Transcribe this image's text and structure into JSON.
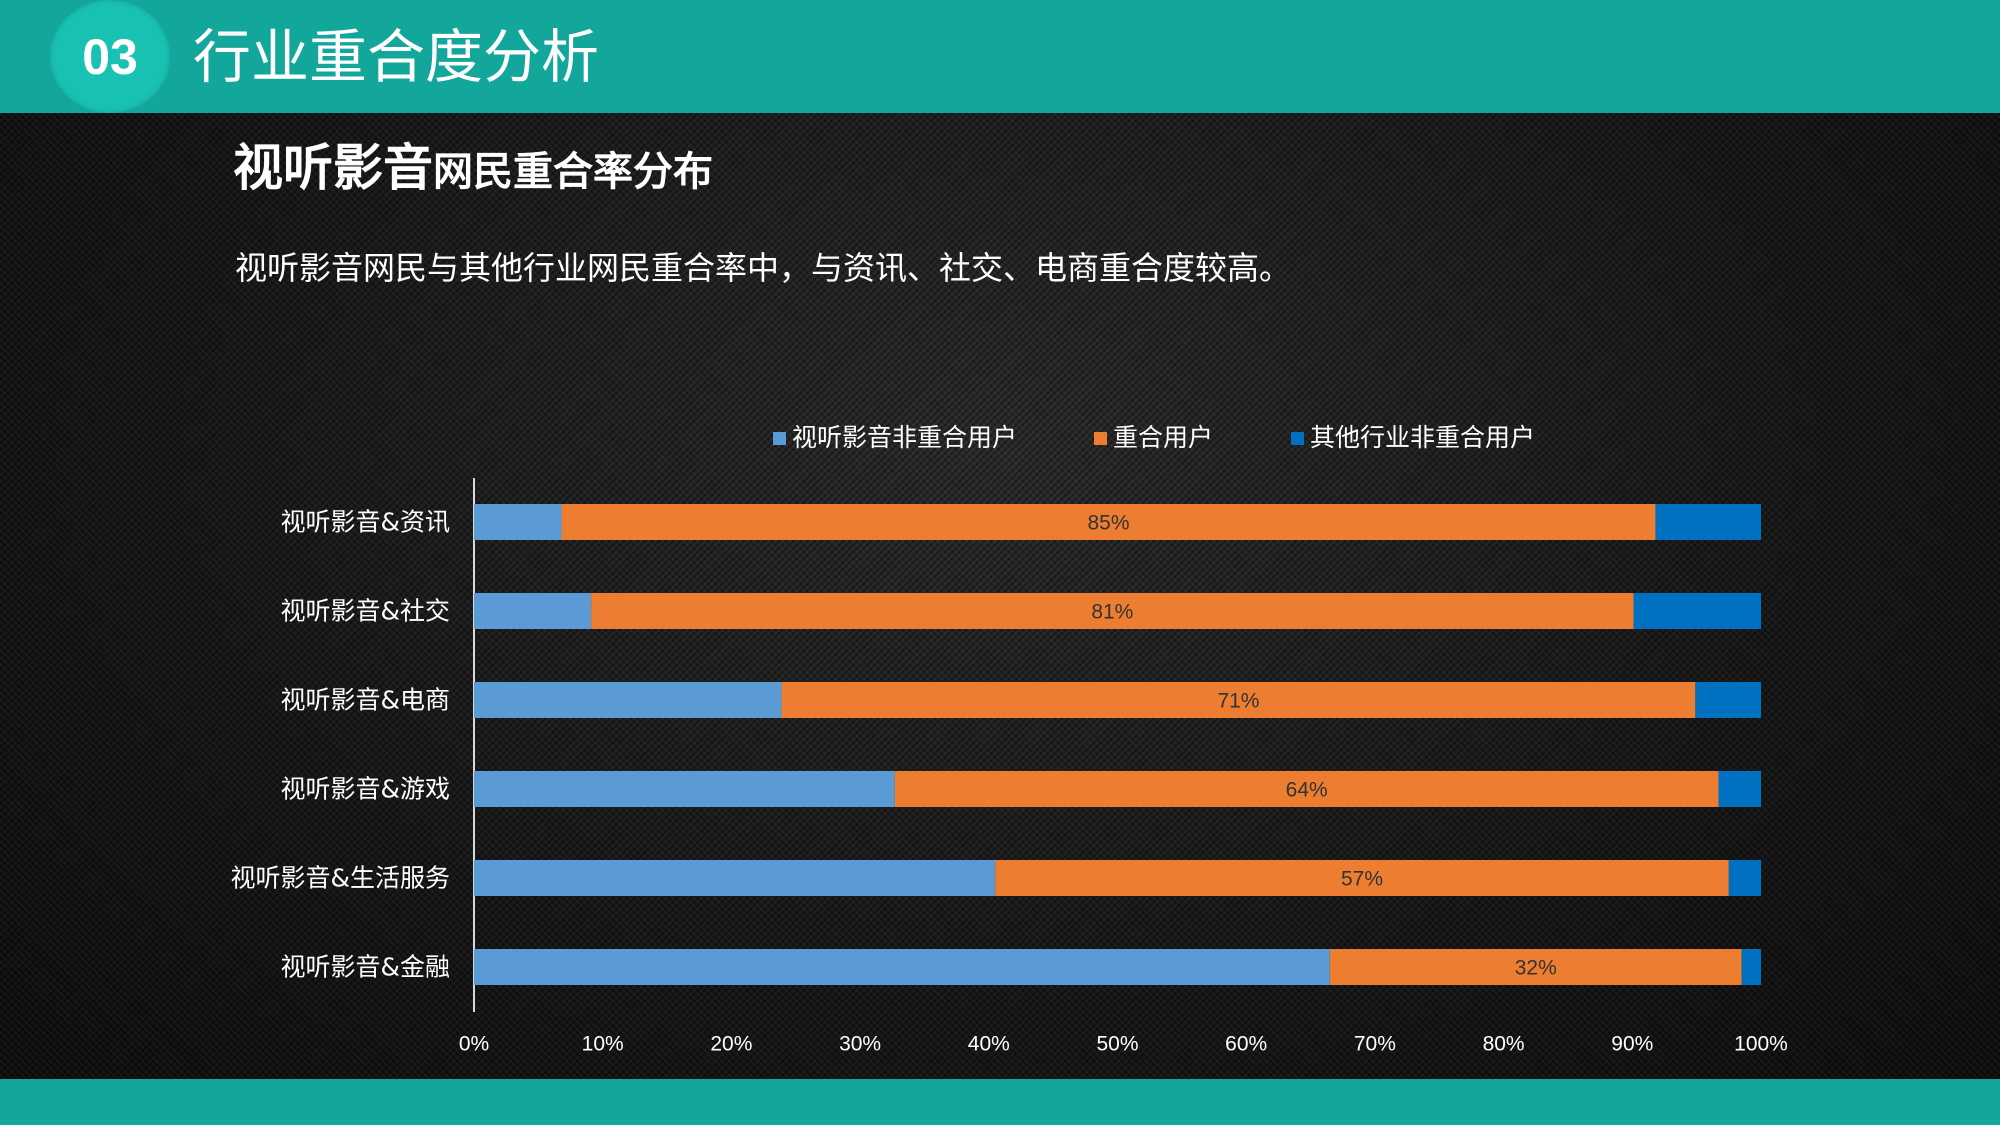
{
  "header": {
    "section_number": "03",
    "section_title": "行业重合度分析"
  },
  "content": {
    "title_big": "视听影音",
    "title_small": "网民重合率分布",
    "subtitle": "视听影音网民与其他行业网民重合率中，与资讯、社交、电商重合度较高。"
  },
  "colors": {
    "teal_bar": "#13a79c",
    "badge": "#19c1b3",
    "non_overlap_audio": "#5b9bd5",
    "overlap": "#ed7d31",
    "non_overlap_other": "#0070c0"
  },
  "chart_data": {
    "type": "bar",
    "orientation": "horizontal",
    "stacked": "percent",
    "title": "视听影音网民重合率分布",
    "categories": [
      "视听影音&资讯",
      "视听影音&社交",
      "视听影音&电商",
      "视听影音&游戏",
      "视听影音&生活服务",
      "视听影音&金融"
    ],
    "series": [
      {
        "name": "视听影音非重合用户",
        "color": "#5b9bd5",
        "values": [
          6.8,
          9.1,
          23.9,
          32.7,
          40.5,
          66.5
        ]
      },
      {
        "name": "重合用户",
        "color": "#ed7d31",
        "values": [
          85,
          81,
          71,
          64,
          57,
          32
        ],
        "data_labels": [
          "85%",
          "81%",
          "71%",
          "64%",
          "57%",
          "32%"
        ]
      },
      {
        "name": "其他行业非重合用户",
        "color": "#0070c0",
        "values": [
          8.2,
          9.9,
          5.1,
          3.3,
          2.5,
          1.5
        ]
      }
    ],
    "xlim": [
      0,
      100
    ],
    "x_ticks": [
      "0%",
      "10%",
      "20%",
      "30%",
      "40%",
      "50%",
      "60%",
      "70%",
      "80%",
      "90%",
      "100%"
    ],
    "legend_position": "top",
    "grid": false
  }
}
